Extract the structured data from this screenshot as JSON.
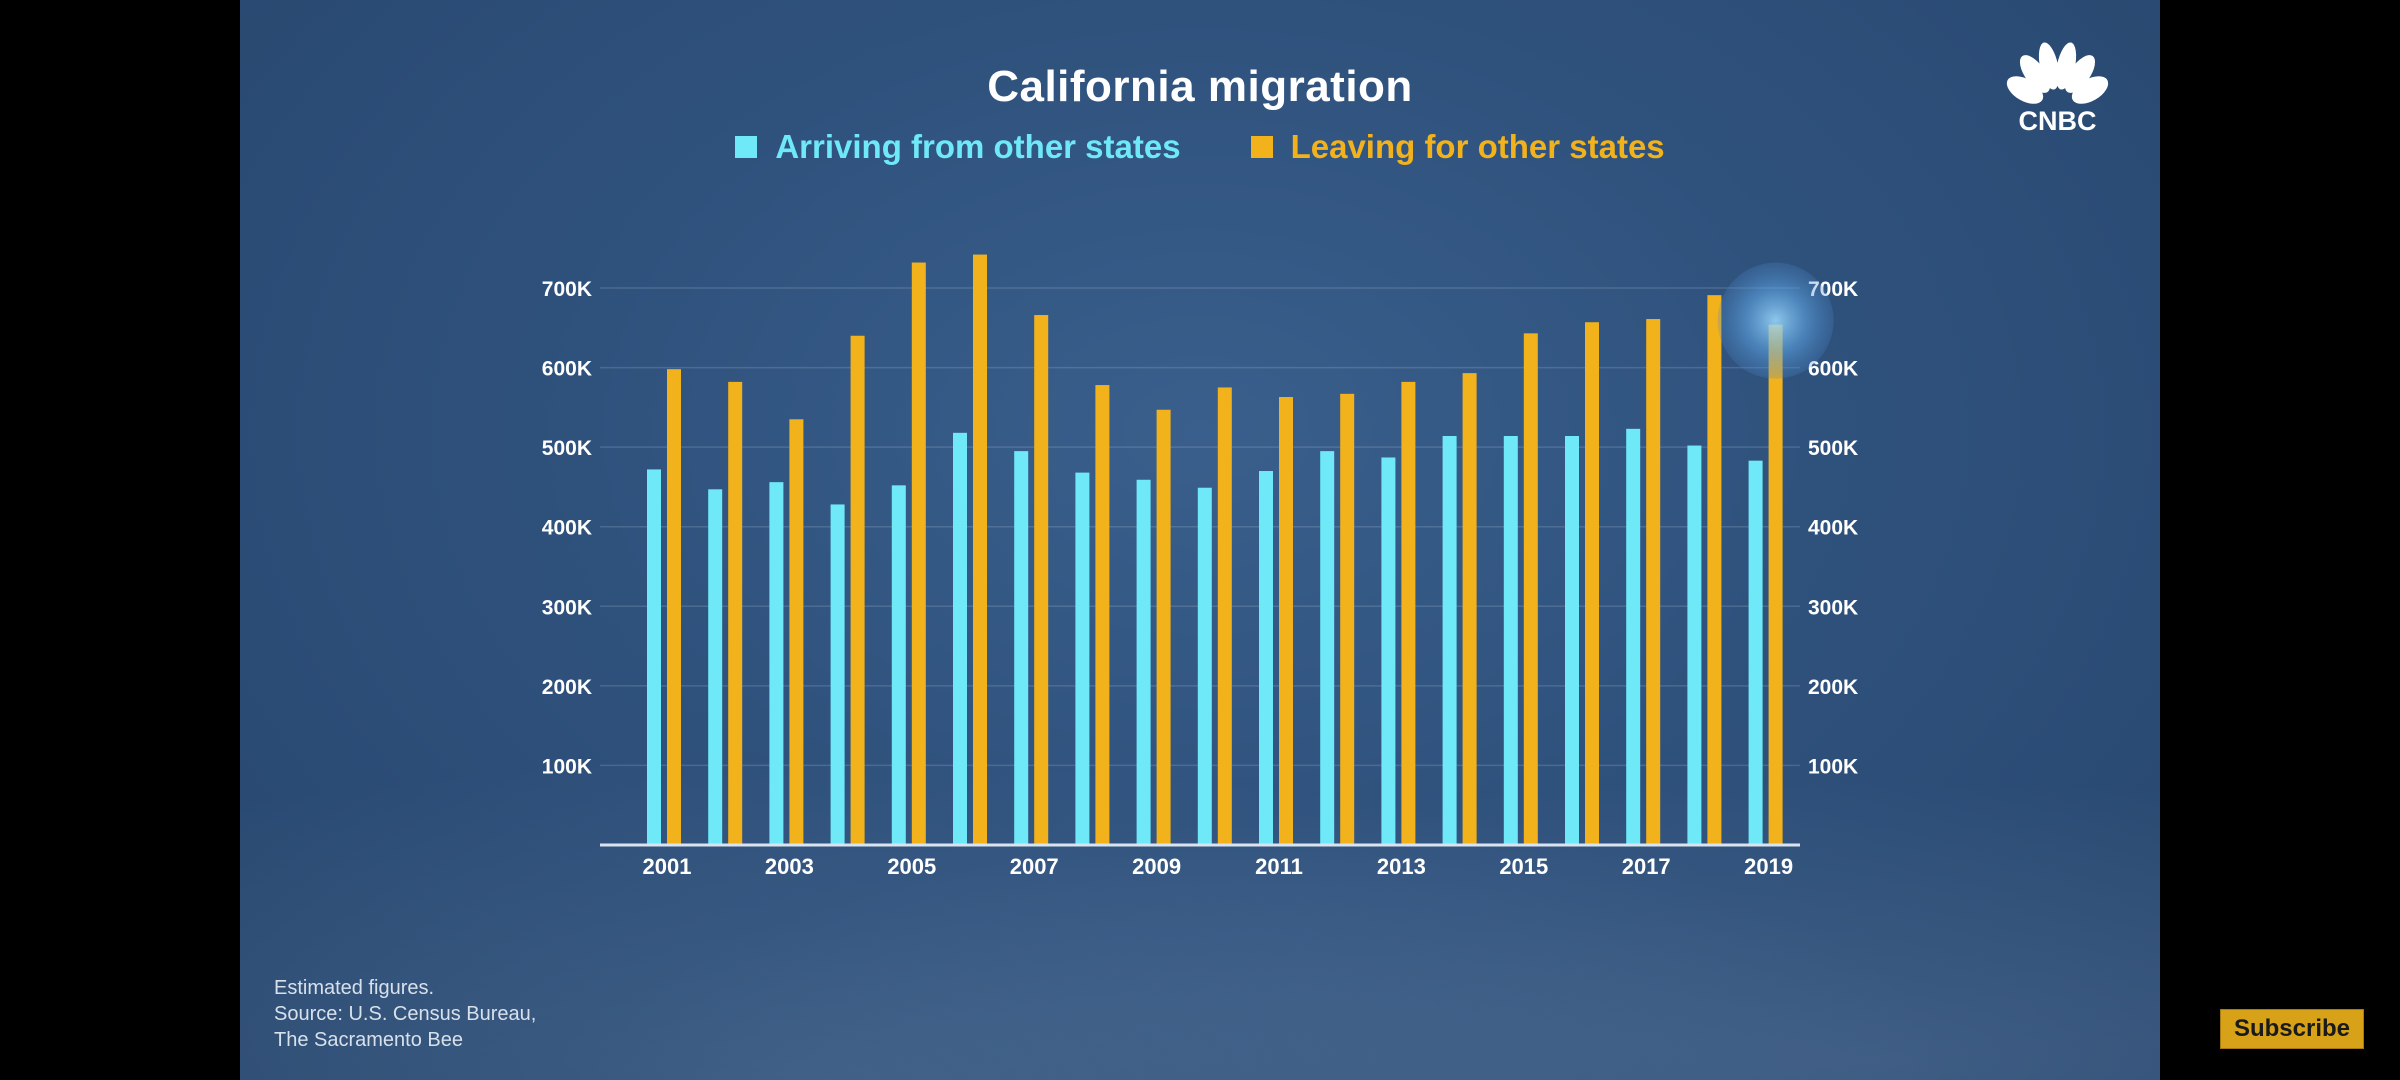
{
  "colors": {
    "arriving": "#6fe8f7",
    "leaving": "#f2b21c",
    "axis": "#d9e4f0",
    "grid": "rgba(200,215,235,0.18)",
    "tick_text": "#ffffff"
  },
  "logo": {
    "text": "CNBC",
    "icon": "nbc-peacock-icon"
  },
  "source": {
    "line1": "Estimated figures.",
    "line2": "Source: U.S. Census Bureau,",
    "line3": "The Sacramento Bee"
  },
  "subscribe": {
    "label": "Subscribe"
  },
  "chart_data": {
    "type": "bar",
    "title": "California migration",
    "xlabel": "",
    "ylabel": "",
    "ylim": [
      0,
      700000
    ],
    "yticks": [
      100000,
      200000,
      300000,
      400000,
      500000,
      600000,
      700000
    ],
    "ytick_labels": [
      "100K",
      "200K",
      "300K",
      "400K",
      "500K",
      "600K",
      "700K"
    ],
    "categories": [
      "2001",
      "2002",
      "2003",
      "2004",
      "2005",
      "2006",
      "2007",
      "2008",
      "2009",
      "2010",
      "2011",
      "2012",
      "2013",
      "2014",
      "2015",
      "2016",
      "2017",
      "2018",
      "2019"
    ],
    "xtick_labels": [
      "2001",
      "",
      "2003",
      "",
      "2005",
      "",
      "2007",
      "",
      "2009",
      "",
      "2011",
      "",
      "2013",
      "",
      "2015",
      "",
      "2017",
      "",
      "2019"
    ],
    "legend": {
      "position": "top-center"
    },
    "grid": true,
    "series": [
      {
        "name": "Arriving from other states",
        "values": [
          472000,
          447000,
          456000,
          428000,
          452000,
          518000,
          495000,
          468000,
          459000,
          449000,
          470000,
          495000,
          487000,
          514000,
          514000,
          514000,
          523000,
          502000,
          483000
        ]
      },
      {
        "name": "Leaving for other states",
        "values": [
          598000,
          582000,
          535000,
          640000,
          732000,
          742000,
          666000,
          578000,
          547000,
          575000,
          563000,
          567000,
          582000,
          593000,
          643000,
          657000,
          661000,
          691000,
          654000
        ]
      }
    ]
  }
}
